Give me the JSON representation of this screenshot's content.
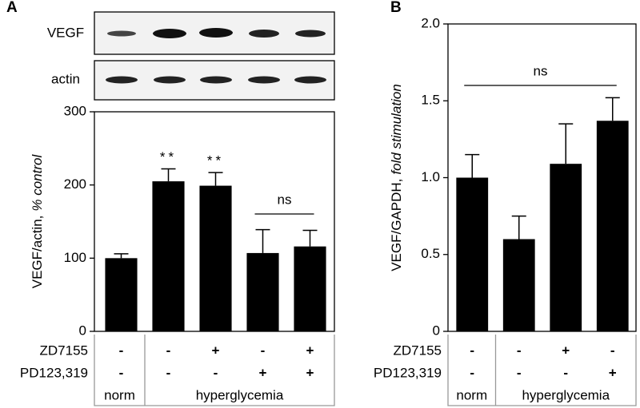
{
  "chart_data": [
    {
      "type": "bar",
      "panel": "A",
      "blot_labels": [
        "VEGF",
        "actin"
      ],
      "ylabel": "VEGF/actin,",
      "ylabel_italic": "% control",
      "values": [
        100,
        205,
        199,
        107,
        116
      ],
      "errors": [
        6,
        17,
        18,
        32,
        22
      ],
      "color": "#000000",
      "ylim": [
        0,
        300
      ],
      "yticks": [
        0,
        100,
        200,
        300
      ],
      "significance": [
        null,
        "**",
        "**",
        null,
        null
      ],
      "ns_label": "ns",
      "treatments": [
        {
          "name": "ZD7155",
          "values": [
            "-",
            "-",
            "+",
            "-",
            "+"
          ]
        },
        {
          "name": "PD123,319",
          "values": [
            "-",
            "-",
            "-",
            "+",
            "+"
          ]
        }
      ],
      "groups": [
        "norm",
        "hyperglycemia"
      ]
    },
    {
      "type": "bar",
      "panel": "B",
      "ylabel": "VEGF/GAPDH,",
      "ylabel_italic": "fold stimulation",
      "values": [
        1.0,
        0.6,
        1.09,
        1.37
      ],
      "errors": [
        0.15,
        0.15,
        0.26,
        0.15
      ],
      "color": "#000000",
      "ylim": [
        0,
        2
      ],
      "yticks": [
        0,
        0.5,
        {
          "value": 1,
          "label": "1.0"
        },
        1.5,
        {
          "value": 2,
          "label": "2.0"
        }
      ],
      "ns_label": "ns",
      "treatments": [
        {
          "name": "ZD7155",
          "values": [
            "-",
            "-",
            "+",
            "-"
          ]
        },
        {
          "name": "PD123,319",
          "values": [
            "-",
            "-",
            "-",
            "+"
          ]
        }
      ],
      "groups": [
        "norm",
        "hyperglycemia"
      ]
    }
  ]
}
